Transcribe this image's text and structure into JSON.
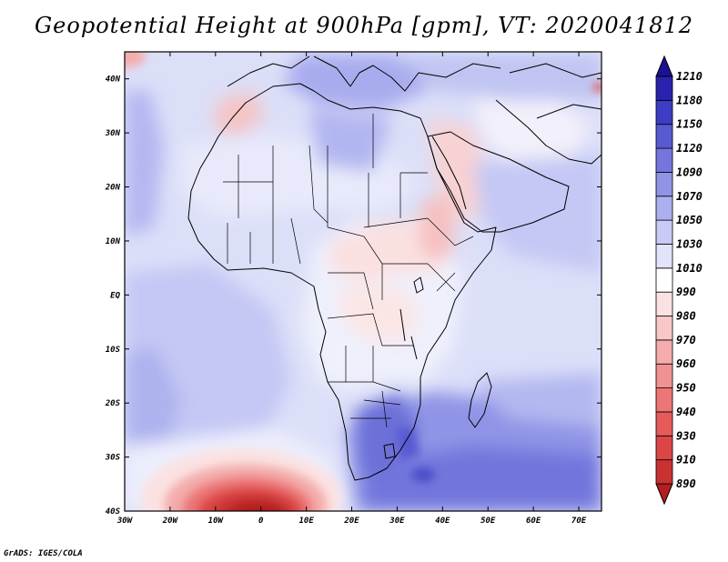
{
  "title": "Geopotential Height at 900hPa [gpm], VT: 2020041812",
  "credit": "GrADS: IGES/COLA",
  "map": {
    "lat_labels": [
      "40N",
      "30N",
      "20N",
      "10N",
      "EQ",
      "10S",
      "20S",
      "30S",
      "40S"
    ],
    "lon_labels": [
      "30W",
      "20W",
      "10W",
      "0",
      "10E",
      "20E",
      "30E",
      "40E",
      "50E",
      "60E",
      "70E"
    ]
  },
  "colorbar": {
    "levels": [
      "890",
      "910",
      "930",
      "940",
      "950",
      "960",
      "970",
      "980",
      "990",
      "1010",
      "1030",
      "1050",
      "1070",
      "1090",
      "1120",
      "1150",
      "1180",
      "1210"
    ],
    "colors": [
      "#b41e1e",
      "#c83232",
      "#dc4646",
      "#e65a5a",
      "#ec7676",
      "#f09292",
      "#f4acac",
      "#f8c8c8",
      "#fbe2e2",
      "#ffffff",
      "#e2e4fa",
      "#c8ccf4",
      "#acb0ee",
      "#9094e6",
      "#7476dc",
      "#585ad2",
      "#3c3cc4",
      "#2a22ac",
      "#1a1290"
    ]
  }
}
